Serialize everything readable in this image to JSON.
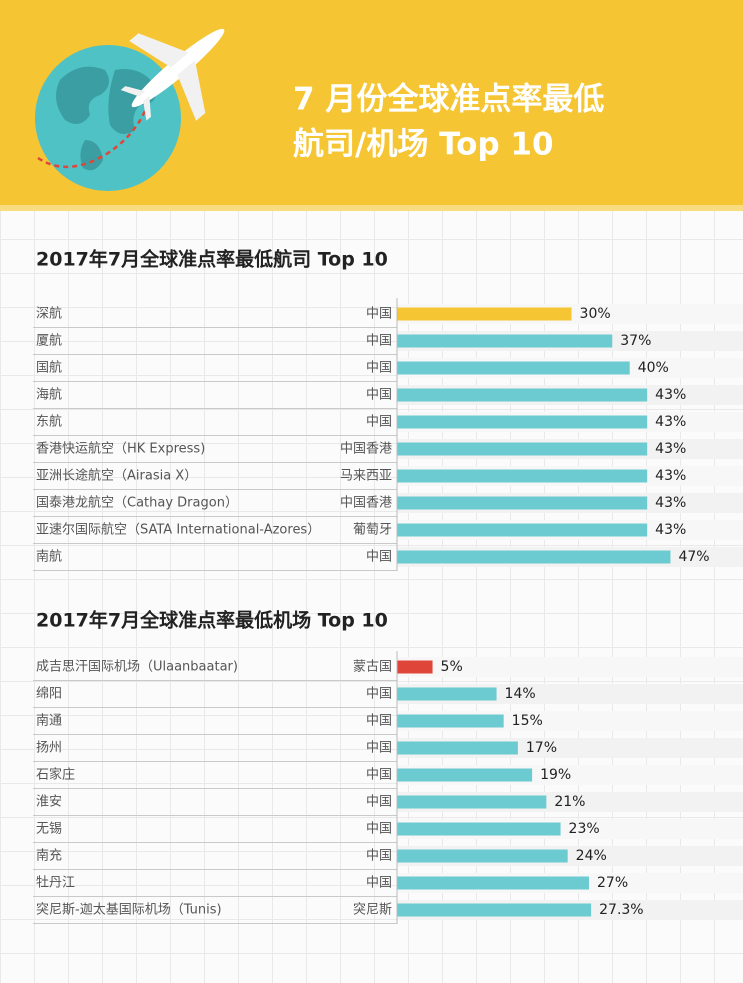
{
  "header": {
    "title_line1": "7 月份全球准点率最低",
    "title_line2": "航司/机场 Top 10"
  },
  "chart_data": [
    {
      "type": "barh",
      "title": "2017年7月全球准点率最低航司 Top 10",
      "categories": [
        "深航",
        "厦航",
        "国航",
        "海航",
        "东航",
        "香港快运航空（HK Express)",
        "亚洲长途航空（Airasia X）",
        "国泰港龙航空（Cathay Dragon）",
        "亚速尔国际航空（SATA International-Azores）",
        "南航"
      ],
      "countries": [
        "中国",
        "中国",
        "中国",
        "中国",
        "中国",
        "中国香港",
        "马来西亚",
        "中国香港",
        "葡萄牙",
        "中国"
      ],
      "values": [
        30,
        37,
        40,
        43,
        43,
        43,
        43,
        43,
        43,
        47
      ],
      "value_labels": [
        "30%",
        "37%",
        "40%",
        "43%",
        "43%",
        "43%",
        "43%",
        "43%",
        "43%",
        "47%"
      ],
      "colors": [
        "#f5c533",
        "#6ccbd0",
        "#6ccbd0",
        "#6ccbd0",
        "#6ccbd0",
        "#6ccbd0",
        "#6ccbd0",
        "#6ccbd0",
        "#6ccbd0",
        "#6ccbd0"
      ],
      "xlim": [
        0,
        55
      ]
    },
    {
      "type": "barh",
      "title": "2017年7月全球准点率最低机场 Top 10",
      "categories": [
        "成吉思汗国际机场（Ulaanbaatar)",
        "绵阳",
        "南通",
        "扬州",
        "石家庄",
        "淮安",
        "无锡",
        "南充",
        "牡丹江",
        "突尼斯-迦太基国际机场（Tunis)"
      ],
      "countries": [
        "蒙古国",
        "中国",
        "中国",
        "中国",
        "中国",
        "中国",
        "中国",
        "中国",
        "中国",
        "突尼斯"
      ],
      "values": [
        5,
        14,
        15,
        17,
        19,
        21,
        23,
        24,
        27,
        27.3
      ],
      "value_labels": [
        "5%",
        "14%",
        "15%",
        "17%",
        "19%",
        "21%",
        "23%",
        "24%",
        "27%",
        "27.3%"
      ],
      "colors": [
        "#e0453a",
        "#6ccbd0",
        "#6ccbd0",
        "#6ccbd0",
        "#6ccbd0",
        "#6ccbd0",
        "#6ccbd0",
        "#6ccbd0",
        "#6ccbd0",
        "#6ccbd0"
      ],
      "xlim": [
        0,
        45
      ]
    }
  ]
}
